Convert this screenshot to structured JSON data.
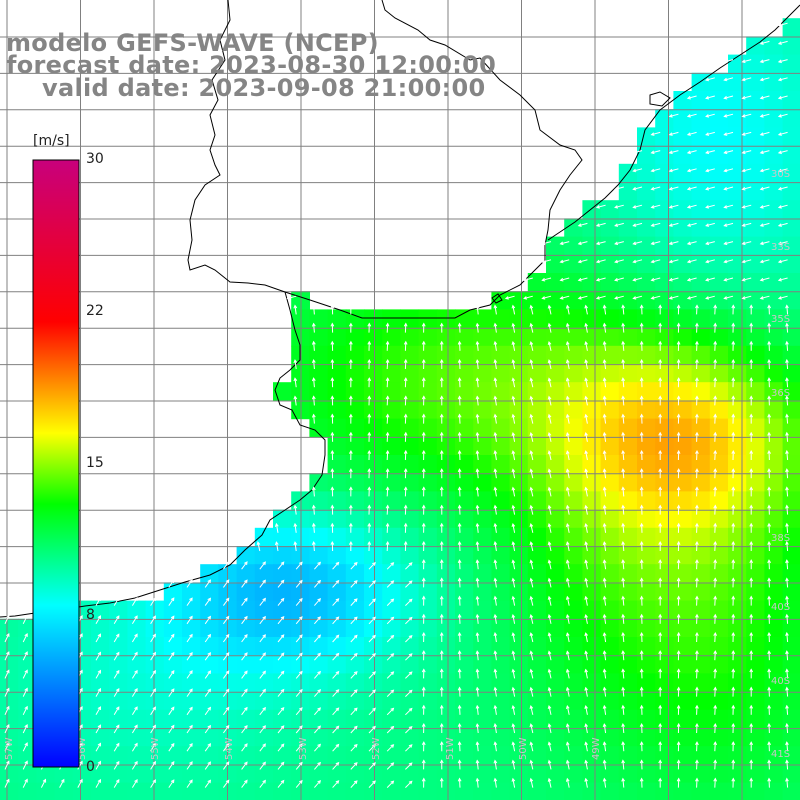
{
  "title": {
    "model": "modelo GEFS-WAVE (NCEP)",
    "forecast": "forecast date: 2023-08-30 12:00:00",
    "valid": "valid date: 2023-09-08 21:00:00"
  },
  "colorbar": {
    "unit": "[m/s]",
    "ticks": [
      "30",
      "22",
      "15",
      "8",
      "0"
    ],
    "tick_values": [
      30,
      22,
      15,
      8,
      0
    ],
    "vmin": 0,
    "vmax": 30,
    "stops": [
      "#0000ff",
      "#00ffff",
      "#00ff00",
      "#ffff00",
      "#ff0000",
      "#c8007c"
    ]
  },
  "map": {
    "variable": "wind speed and direction (10 m)",
    "land_color": "#ffffff",
    "grid_color": "#7f7f7f",
    "coast_color": "#000000",
    "lat_labels": [
      "30S",
      "33S",
      "35S",
      "36S",
      "38S",
      "40S",
      "40S",
      "41S"
    ],
    "lon_labels": [
      "57W",
      "56W",
      "55W",
      "54W",
      "53W",
      "52W",
      "51W",
      "50W",
      "49W"
    ]
  }
}
